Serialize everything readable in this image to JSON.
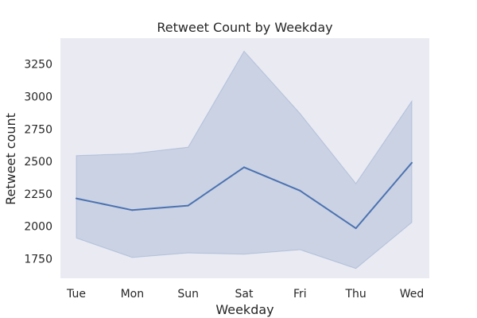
{
  "chart_data": {
    "type": "line",
    "title": "Retweet Count by Weekday",
    "xlabel": "Weekday",
    "ylabel": "Retweet count",
    "categories": [
      "Tue",
      "Mon",
      "Sun",
      "Sat",
      "Fri",
      "Thu",
      "Wed"
    ],
    "series": [
      {
        "values": [
          2215,
          2125,
          2160,
          2455,
          2275,
          1985,
          2490
        ],
        "ci_upper": [
          2545,
          2560,
          2610,
          3350,
          2870,
          2330,
          2965
        ],
        "ci_lower": [
          1910,
          1760,
          1795,
          1785,
          1820,
          1675,
          2030
        ]
      }
    ],
    "ylim": [
      1600,
      3450
    ],
    "yticks": [
      1750,
      2000,
      2250,
      2500,
      2750,
      3000,
      3250
    ],
    "grid": false,
    "colors": {
      "line": "#4c72b0",
      "band": "#4c72b0",
      "plot_background": "#eaeaf2"
    }
  }
}
